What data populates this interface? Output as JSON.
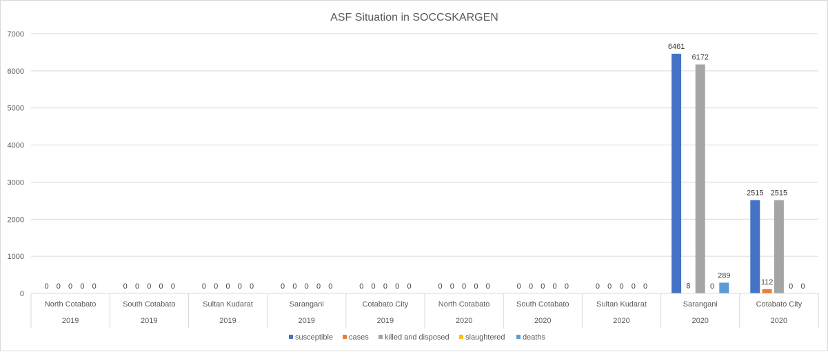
{
  "chart_data": {
    "type": "bar",
    "title": "ASF Situation in SOCCSKARGEN",
    "xlabel": "",
    "ylabel": "",
    "ylim": [
      0,
      7000
    ],
    "yticks": [
      0,
      1000,
      2000,
      3000,
      4000,
      5000,
      6000,
      7000
    ],
    "grid": true,
    "legend_position": "bottom",
    "categories": [
      {
        "region": "North Cotabato",
        "year": "2019"
      },
      {
        "region": "South Cotabato",
        "year": "2019"
      },
      {
        "region": "Sultan Kudarat",
        "year": "2019"
      },
      {
        "region": "Sarangani",
        "year": "2019"
      },
      {
        "region": "Cotabato City",
        "year": "2019"
      },
      {
        "region": "North Cotabato",
        "year": "2020"
      },
      {
        "region": "South Cotabato",
        "year": "2020"
      },
      {
        "region": "Sultan Kudarat",
        "year": "2020"
      },
      {
        "region": "Sarangani",
        "year": "2020"
      },
      {
        "region": "Cotabato City",
        "year": "2020"
      }
    ],
    "series": [
      {
        "name": "susceptible",
        "color": "#4472C4",
        "values": [
          0,
          0,
          0,
          0,
          0,
          0,
          0,
          0,
          6461,
          2515
        ]
      },
      {
        "name": "cases",
        "color": "#ED7D31",
        "values": [
          0,
          0,
          0,
          0,
          0,
          0,
          0,
          0,
          8,
          112
        ]
      },
      {
        "name": "killed and disposed",
        "color": "#A5A5A5",
        "values": [
          0,
          0,
          0,
          0,
          0,
          0,
          0,
          0,
          6172,
          2515
        ]
      },
      {
        "name": "slaughtered",
        "color": "#FFC000",
        "values": [
          0,
          0,
          0,
          0,
          0,
          0,
          0,
          0,
          0,
          0
        ]
      },
      {
        "name": "deaths",
        "color": "#5B9BD5",
        "values": [
          0,
          0,
          0,
          0,
          0,
          0,
          0,
          0,
          289,
          0
        ]
      }
    ]
  }
}
